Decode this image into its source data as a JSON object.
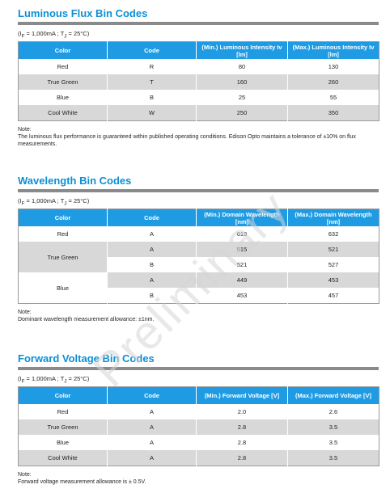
{
  "luminous": {
    "title": "Luminous Flux Bin Codes",
    "condition": "(I",
    "cond_sub": "F",
    "cond_mid": " = 1,000mA ; T",
    "cond_sub2": "J",
    "cond_end": " = 25°C)",
    "headers": [
      "Color",
      "Code",
      "(Min.) Luminous Intensity Iv [lm]",
      "(Max.) Luminous Intensity Iv [lm]"
    ],
    "rows": [
      [
        "Red",
        "R",
        "80",
        "130"
      ],
      [
        "True Green",
        "T",
        "160",
        "260"
      ],
      [
        "Blue",
        "B",
        "25",
        "55"
      ],
      [
        "Cool White",
        "W",
        "250",
        "350"
      ]
    ],
    "note_label": "Note:",
    "note_text": "The luminous flux performance is guaranteed within published operating conditions.  Edison Opto maintains a tolerance of ±10% on flux measurements."
  },
  "wavelength": {
    "title": "Wavelength Bin Codes",
    "condition": "(I",
    "cond_sub": "F",
    "cond_mid": " = 1,000mA ; T",
    "cond_sub2": "J",
    "cond_end": " = 25°C)",
    "headers": [
      "Color",
      "Code",
      "(Min.) Domain Wavelength [nm]",
      "(Max.) Domain Wavelength [nm]"
    ],
    "groups": [
      {
        "color": "Red",
        "rows": [
          [
            "A",
            "619",
            "632"
          ]
        ]
      },
      {
        "color": "True Green",
        "rows": [
          [
            "A",
            "515",
            "521"
          ],
          [
            "B",
            "521",
            "527"
          ]
        ]
      },
      {
        "color": "Blue",
        "rows": [
          [
            "A",
            "449",
            "453"
          ],
          [
            "B",
            "453",
            "457"
          ]
        ]
      }
    ],
    "note_label": "Note:",
    "note_text": "Dominant wavelength measurement allowance: ±1nm."
  },
  "voltage": {
    "title": "Forward Voltage Bin Codes",
    "condition": "(I",
    "cond_sub": "F",
    "cond_mid": " = 1,000mA ; T",
    "cond_sub2": "J",
    "cond_end": " = 25°C)",
    "headers": [
      "Color",
      "Code",
      "(Min.) Forward Voltage [V]",
      "(Max.) Forward Voltage [V]"
    ],
    "rows": [
      [
        "Red",
        "A",
        "2.0",
        "2.6"
      ],
      [
        "True Green",
        "A",
        "2.8",
        "3.5"
      ],
      [
        "Blue",
        "A",
        "2.8",
        "3.5"
      ],
      [
        "Cool White",
        "A",
        "2.8",
        "3.5"
      ]
    ],
    "note_label": "Note:",
    "note_text": "Forward voltage measurement allowance is ± 0.5V."
  },
  "watermark": "Preliminary"
}
